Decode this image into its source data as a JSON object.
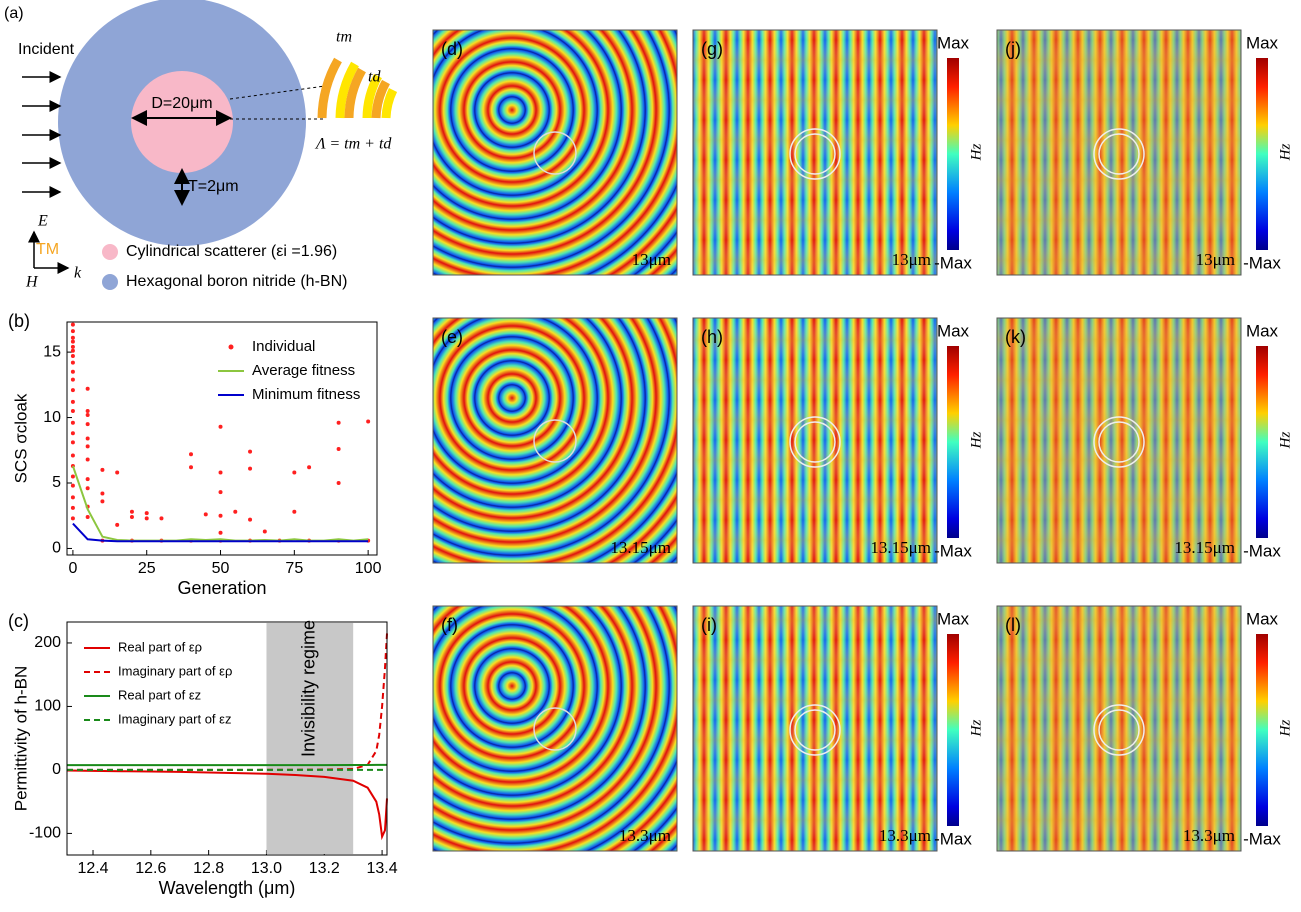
{
  "panel_a": {
    "label": "(a)",
    "incident": "Incident",
    "diameter": "D=20μm",
    "thickness": "T=2μm",
    "t_m": "tm",
    "t_d": "td",
    "period": "Λ = tm + td",
    "e_field": "E",
    "mode": "TM",
    "h_field": "H",
    "k_vector": "k",
    "legend": [
      "Cylindrical scatterer (εi =1.96)",
      "Hexagonal boron nitride (h-BN)"
    ]
  },
  "chart_data": [
    {
      "type": "scatter",
      "label": "(b)",
      "xlabel": "Generation",
      "ylabel": "SCS σcloak",
      "xlim": [
        -2,
        103
      ],
      "ylim": [
        -0.5,
        17.3
      ],
      "xticks": [
        0,
        25,
        50,
        75,
        100
      ],
      "yticks": [
        0,
        5,
        10,
        15
      ],
      "series": [
        {
          "name": "Individual",
          "color": "#ff2020",
          "style": "dots",
          "x": [
            0,
            0,
            0,
            0,
            0,
            0,
            0,
            0,
            0,
            0,
            0,
            0,
            0,
            0,
            0,
            0,
            0,
            0,
            0,
            0,
            0,
            0,
            0,
            5,
            5,
            5,
            5,
            5,
            5,
            5,
            5,
            5,
            5,
            5,
            10,
            10,
            10,
            15,
            15,
            20,
            20,
            25,
            25,
            30,
            40,
            40,
            45,
            50,
            50,
            50,
            50,
            50,
            55,
            60,
            60,
            60,
            65,
            75,
            75,
            80,
            90,
            90,
            90,
            100,
            10,
            20,
            30,
            40,
            50,
            60,
            70,
            80,
            90,
            100
          ],
          "values": [
            17.1,
            16.6,
            16.1,
            15.8,
            15.4,
            15.1,
            14.7,
            14.2,
            13.5,
            12.9,
            12.1,
            11.2,
            10.5,
            9.6,
            8.8,
            8.1,
            7.1,
            6.3,
            5.5,
            4.8,
            3.9,
            3.1,
            2.3,
            12.2,
            10.5,
            10.2,
            9.5,
            8.4,
            7.8,
            6.8,
            5.3,
            4.6,
            3.2,
            2.4,
            6,
            4.2,
            3.6,
            5.8,
            1.8,
            2.8,
            2.4,
            2.7,
            2.3,
            2.3,
            7.2,
            6.2,
            2.6,
            9.3,
            5.8,
            4.3,
            2.5,
            1.2,
            2.8,
            7.4,
            6.1,
            2.2,
            1.3,
            5.8,
            2.8,
            6.2,
            9.6,
            7.6,
            5.0,
            9.7,
            0.6,
            0.6,
            0.6,
            0.6,
            0.6,
            0.6,
            0.6,
            0.6,
            0.6,
            0.6
          ]
        },
        {
          "name": "Average fitness",
          "color": "#8cc63f",
          "style": "line",
          "x": [
            0,
            5,
            10,
            15,
            20,
            25,
            30,
            35,
            40,
            45,
            50,
            55,
            60,
            65,
            70,
            75,
            80,
            85,
            90,
            95,
            100
          ],
          "values": [
            6.3,
            3.0,
            0.9,
            0.65,
            0.6,
            0.6,
            0.6,
            0.6,
            0.7,
            0.65,
            0.7,
            0.6,
            0.6,
            0.65,
            0.6,
            0.7,
            0.6,
            0.6,
            0.7,
            0.6,
            0.7
          ]
        },
        {
          "name": "Minimum fitness",
          "color": "#0000cc",
          "style": "line",
          "x": [
            0,
            5,
            10,
            15,
            20,
            25,
            30,
            35,
            40,
            45,
            50,
            55,
            60,
            65,
            70,
            75,
            80,
            85,
            90,
            95,
            100
          ],
          "values": [
            1.9,
            0.7,
            0.6,
            0.55,
            0.55,
            0.55,
            0.55,
            0.55,
            0.55,
            0.55,
            0.55,
            0.55,
            0.55,
            0.55,
            0.55,
            0.55,
            0.55,
            0.55,
            0.55,
            0.55,
            0.55
          ]
        }
      ]
    },
    {
      "type": "line",
      "label": "(c)",
      "xlabel": "Wavelength (μm)",
      "ylabel": "Permittivity of h-BN",
      "xlim": [
        12.31,
        13.417
      ],
      "ylim": [
        -134,
        233
      ],
      "xticks": [
        12.4,
        12.6,
        12.8,
        {
          "value": 13,
          "label": "13.0"
        },
        13.2,
        13.4
      ],
      "yticks": [
        -100,
        0,
        100,
        200
      ],
      "shade": {
        "from": 13.0,
        "to": 13.3,
        "label": "Invisibility regime"
      },
      "x": [
        12.31,
        12.4,
        12.5,
        12.6,
        12.7,
        12.8,
        12.9,
        13.0,
        13.1,
        13.2,
        13.3,
        13.35,
        13.38,
        13.39,
        13.4,
        13.41,
        13.417
      ],
      "series": [
        {
          "name": "Real part of ερ",
          "color": "#e00000",
          "dashed": false,
          "values": [
            -1,
            -1.5,
            -2,
            -2.5,
            -3,
            -4,
            -5,
            -6,
            -8,
            -11,
            -17,
            -28,
            -50,
            -70,
            -105,
            -95,
            -45
          ]
        },
        {
          "name": "Imaginary part of ερ",
          "color": "#e00000",
          "dashed": true,
          "values": [
            0,
            0,
            0,
            0,
            0,
            0,
            0.1,
            0.2,
            0.3,
            0.6,
            1.5,
            8,
            30,
            55,
            100,
            160,
            215
          ]
        },
        {
          "name": "Real part of εz",
          "color": "#1a8a1a",
          "dashed": false,
          "values": [
            7.5,
            7.5,
            7.5,
            7.5,
            7.5,
            7.5,
            7.5,
            7.5,
            7.5,
            7.6,
            7.7,
            7.8,
            7.9,
            8,
            8,
            8,
            8
          ]
        },
        {
          "name": "Imaginary part of εz",
          "color": "#1a8a1a",
          "dashed": true,
          "values": [
            0,
            0,
            0,
            0,
            0,
            0,
            0,
            0,
            0,
            0,
            0,
            0,
            0,
            0,
            0,
            0,
            0
          ]
        }
      ]
    }
  ],
  "fields": [
    {
      "label": "(d)",
      "wavelength": "13μm"
    },
    {
      "label": "(e)",
      "wavelength": "13.15μm"
    },
    {
      "label": "(f)",
      "wavelength": "13.3μm"
    },
    {
      "label": "(g)",
      "wavelength": "13μm"
    },
    {
      "label": "(h)",
      "wavelength": "13.15μm"
    },
    {
      "label": "(i)",
      "wavelength": "13.3μm"
    },
    {
      "label": "(j)",
      "wavelength": "13μm"
    },
    {
      "label": "(k)",
      "wavelength": "13.15μm"
    },
    {
      "label": "(l)",
      "wavelength": "13.3μm"
    }
  ],
  "colorbar": {
    "max": "Max",
    "min": "-Max",
    "quantity": "Hz"
  }
}
